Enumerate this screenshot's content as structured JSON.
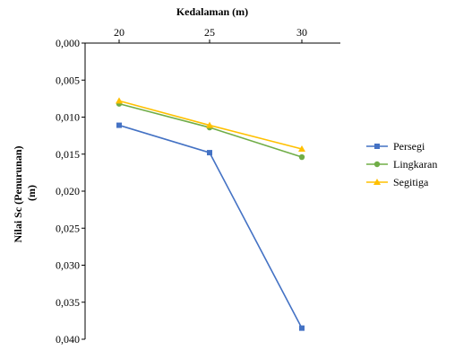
{
  "chart_data": {
    "type": "line",
    "title": "",
    "xlabel": "Kedalaman (m)",
    "ylabel": "Nilai Sc (Penurunan) (m)",
    "ylabel_lines": [
      "Nilai Sc (Penurunan)",
      "(m)"
    ],
    "x": [
      20,
      25,
      30
    ],
    "x_tick_labels": [
      "20",
      "25",
      "30"
    ],
    "ylim": [
      0,
      0.04
    ],
    "y_inverted": true,
    "y_ticks": [
      0,
      0.005,
      0.01,
      0.015,
      0.02,
      0.025,
      0.03,
      0.035,
      0.04
    ],
    "y_tick_labels": [
      "0,000",
      "0,005",
      "0,010",
      "0,015",
      "0,020",
      "0,025",
      "0,030",
      "0,035",
      "0,040"
    ],
    "grid": false,
    "legend_position": "right",
    "series": [
      {
        "name": "Persegi",
        "values": [
          0.0111,
          0.0148,
          0.0385
        ],
        "color": "#4472C4",
        "marker": "square"
      },
      {
        "name": "Lingkaran",
        "values": [
          0.0082,
          0.0114,
          0.0154
        ],
        "color": "#70AD47",
        "marker": "circle"
      },
      {
        "name": "Segitiga",
        "values": [
          0.0078,
          0.0111,
          0.0143
        ],
        "color": "#FFC000",
        "marker": "triangle"
      }
    ]
  }
}
